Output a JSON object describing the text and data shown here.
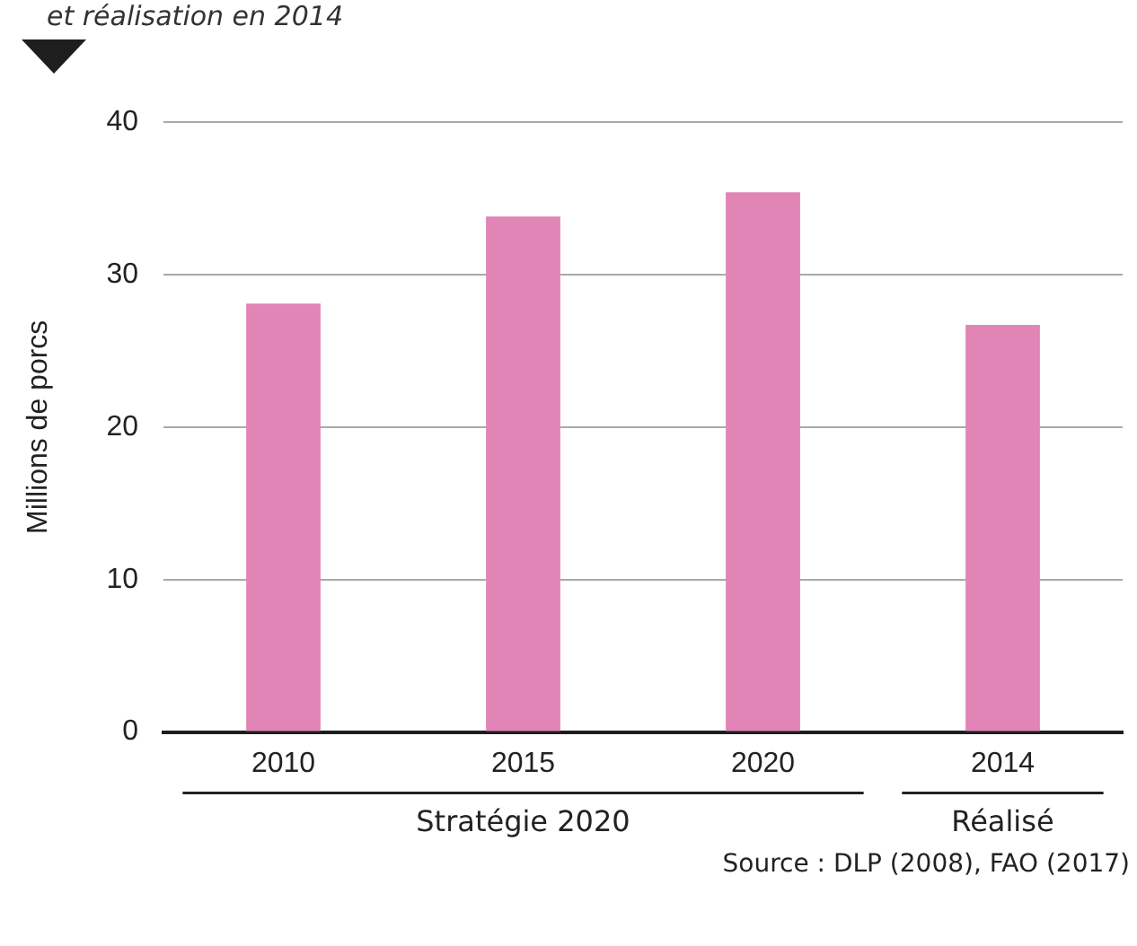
{
  "chart_data": {
    "type": "bar",
    "subtitle": "et réalisation en 2014",
    "ylabel": "Millions de porcs",
    "categories": [
      "2010",
      "2015",
      "2020",
      "2014"
    ],
    "values": [
      28.1,
      33.8,
      35.4,
      26.7
    ],
    "color": "#e085b6",
    "ylim": [
      0,
      40
    ],
    "yticks": [
      0,
      10,
      20,
      30,
      40
    ],
    "grid": "y",
    "legend": false,
    "annotations": [
      "Stratégie 2020",
      "Réalisé",
      "Source : DLP (2008), FAO (2017)"
    ]
  }
}
